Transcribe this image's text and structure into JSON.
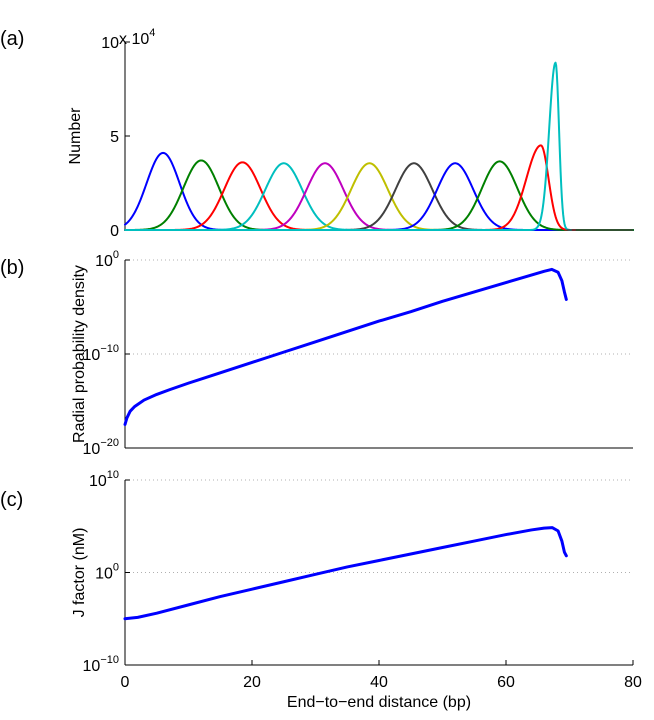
{
  "chart_data": [
    {
      "panel_label": "(a)",
      "type": "line",
      "xlabel": "",
      "ylabel": "Number",
      "xlim": [
        0,
        80
      ],
      "ylim": [
        0,
        100000
      ],
      "y_ticks": [
        {
          "value": 0,
          "label": "0"
        },
        {
          "value": 50000,
          "label": "5"
        },
        {
          "value": 100000,
          "label": "10"
        }
      ],
      "y_multiplier": {
        "base": "x 10",
        "exponent": "4"
      },
      "series": [
        {
          "color": "#0000ff",
          "peak_x": 6.0,
          "peak_y": 41000,
          "sigma": 2.6
        },
        {
          "color": "#008000",
          "peak_x": 12.0,
          "peak_y": 37000,
          "sigma": 2.8
        },
        {
          "color": "#ff0000",
          "peak_x": 18.5,
          "peak_y": 36000,
          "sigma": 2.85
        },
        {
          "color": "#00bfbf",
          "peak_x": 25.0,
          "peak_y": 35500,
          "sigma": 2.9
        },
        {
          "color": "#bf00bf",
          "peak_x": 31.5,
          "peak_y": 35500,
          "sigma": 2.9
        },
        {
          "color": "#bfbf00",
          "peak_x": 38.5,
          "peak_y": 35500,
          "sigma": 2.9
        },
        {
          "color": "#404040",
          "peak_x": 45.5,
          "peak_y": 35500,
          "sigma": 2.9
        },
        {
          "color": "#0000ff",
          "peak_x": 52.0,
          "peak_y": 35500,
          "sigma": 2.85
        },
        {
          "color": "#008000",
          "peak_x": 59.0,
          "peak_y": 36500,
          "sigma": 2.8
        },
        {
          "color": "#ff0000",
          "peak_x": 65.5,
          "peak_y": 45000,
          "sigma_left": 2.3,
          "sigma_right": 1.2
        },
        {
          "color": "#00bfbf",
          "peak_x": 67.8,
          "peak_y": 89000,
          "sigma_left": 1.0,
          "sigma_right": 0.55
        }
      ]
    },
    {
      "panel_label": "(b)",
      "type": "line",
      "scale": "log",
      "xlabel": "",
      "ylabel": "Radial probability density",
      "xlim": [
        0,
        80
      ],
      "ylim_log10": [
        -20,
        0
      ],
      "y_ticks": [
        {
          "log10": 0,
          "base": "10",
          "exponent": "0"
        },
        {
          "log10": -10,
          "base": "10",
          "exponent": "−10"
        },
        {
          "log10": -20,
          "base": "10",
          "exponent": "−20"
        }
      ],
      "gridlines_log10": [
        0,
        -10
      ],
      "series": [
        {
          "color": "#0000ff",
          "points": [
            {
              "x": 0.0,
              "log10_y": -17.5
            },
            {
              "x": 0.3,
              "log10_y": -16.8
            },
            {
              "x": 0.8,
              "log10_y": -16.1
            },
            {
              "x": 1.5,
              "log10_y": -15.6
            },
            {
              "x": 3,
              "log10_y": -14.9
            },
            {
              "x": 5,
              "log10_y": -14.3
            },
            {
              "x": 7,
              "log10_y": -13.8
            },
            {
              "x": 10,
              "log10_y": -13.1
            },
            {
              "x": 15,
              "log10_y": -12.0
            },
            {
              "x": 20,
              "log10_y": -10.9
            },
            {
              "x": 25,
              "log10_y": -9.8
            },
            {
              "x": 30,
              "log10_y": -8.7
            },
            {
              "x": 35,
              "log10_y": -7.6
            },
            {
              "x": 40,
              "log10_y": -6.5
            },
            {
              "x": 45,
              "log10_y": -5.5
            },
            {
              "x": 50,
              "log10_y": -4.4
            },
            {
              "x": 55,
              "log10_y": -3.4
            },
            {
              "x": 60,
              "log10_y": -2.4
            },
            {
              "x": 64,
              "log10_y": -1.6
            },
            {
              "x": 66,
              "log10_y": -1.2
            },
            {
              "x": 67.2,
              "log10_y": -1.0
            },
            {
              "x": 68.2,
              "log10_y": -1.3
            },
            {
              "x": 68.8,
              "log10_y": -2.2
            },
            {
              "x": 69.2,
              "log10_y": -3.4
            },
            {
              "x": 69.5,
              "log10_y": -4.2
            }
          ]
        }
      ]
    },
    {
      "panel_label": "(c)",
      "type": "line",
      "scale": "log",
      "xlabel": "End−to−end distance (bp)",
      "ylabel": "J factor (nM)",
      "xlim": [
        0,
        80
      ],
      "ylim_log10": [
        -10,
        10
      ],
      "x_ticks": [
        0,
        20,
        40,
        60,
        80
      ],
      "y_ticks": [
        {
          "log10": 10,
          "base": "10",
          "exponent": "10"
        },
        {
          "log10": 0,
          "base": "10",
          "exponent": "0"
        },
        {
          "log10": -10,
          "base": "10",
          "exponent": "−10"
        }
      ],
      "gridlines_log10": [
        10,
        0
      ],
      "series": [
        {
          "color": "#0000ff",
          "points": [
            {
              "x": 0.0,
              "log10_y": -5.0
            },
            {
              "x": 2,
              "log10_y": -4.85
            },
            {
              "x": 5,
              "log10_y": -4.4
            },
            {
              "x": 10,
              "log10_y": -3.5
            },
            {
              "x": 15,
              "log10_y": -2.6
            },
            {
              "x": 20,
              "log10_y": -1.8
            },
            {
              "x": 25,
              "log10_y": -1.0
            },
            {
              "x": 30,
              "log10_y": -0.2
            },
            {
              "x": 35,
              "log10_y": 0.6
            },
            {
              "x": 40,
              "log10_y": 1.3
            },
            {
              "x": 45,
              "log10_y": 2.0
            },
            {
              "x": 50,
              "log10_y": 2.7
            },
            {
              "x": 55,
              "log10_y": 3.4
            },
            {
              "x": 60,
              "log10_y": 4.1
            },
            {
              "x": 64,
              "log10_y": 4.6
            },
            {
              "x": 66,
              "log10_y": 4.8
            },
            {
              "x": 67.3,
              "log10_y": 4.85
            },
            {
              "x": 68.2,
              "log10_y": 4.5
            },
            {
              "x": 68.8,
              "log10_y": 3.4
            },
            {
              "x": 69.2,
              "log10_y": 2.2
            },
            {
              "x": 69.5,
              "log10_y": 1.8
            }
          ]
        }
      ]
    }
  ]
}
